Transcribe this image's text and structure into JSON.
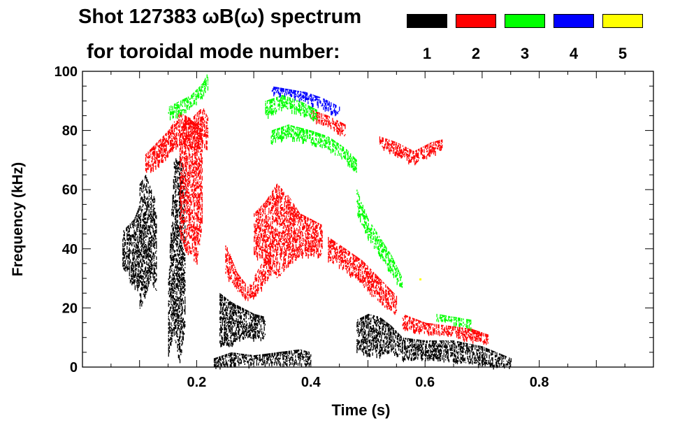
{
  "chart_data": {
    "type": "heatmap",
    "title": "Shot 127383 ωB(ω) spectrum",
    "subtitle": "for toroidal mode number:",
    "xlabel": "Time (s)",
    "ylabel": "Frequency (kHz)",
    "xlim": [
      0,
      1.0
    ],
    "ylim": [
      0,
      100
    ],
    "xticks": [
      "0.2",
      "0.4",
      "0.6",
      "0.8"
    ],
    "xtick_values": [
      0.2,
      0.4,
      0.6,
      0.8
    ],
    "yticks": [
      "0",
      "20",
      "40",
      "60",
      "80",
      "100"
    ],
    "ytick_values": [
      0,
      20,
      40,
      60,
      80,
      100
    ],
    "legend": [
      {
        "mode": "1",
        "color": "#000000"
      },
      {
        "mode": "2",
        "color": "#ff0000"
      },
      {
        "mode": "3",
        "color": "#00ff00"
      },
      {
        "mode": "4",
        "color": "#0000ff"
      },
      {
        "mode": "5",
        "color": "#ffff00"
      }
    ],
    "series": [
      {
        "mode": "1",
        "color": "#000000",
        "traces": [
          [
            [
              0.07,
              33,
              46
            ],
            [
              0.08,
              30,
              48
            ],
            [
              0.09,
              28,
              50
            ],
            [
              0.1,
              25,
              55
            ]
          ],
          [
            [
              0.1,
              20,
              62
            ],
            [
              0.11,
              25,
              65
            ],
            [
              0.12,
              30,
              60
            ],
            [
              0.13,
              25,
              55
            ]
          ],
          [
            [
              0.15,
              5,
              30
            ],
            [
              0.16,
              10,
              70
            ],
            [
              0.17,
              2,
              72
            ],
            [
              0.18,
              15,
              65
            ]
          ],
          [
            [
              0.23,
              0,
              3
            ],
            [
              0.26,
              1,
              5
            ],
            [
              0.3,
              1,
              4
            ],
            [
              0.34,
              1,
              5
            ],
            [
              0.38,
              1,
              6
            ],
            [
              0.4,
              1,
              5
            ]
          ],
          [
            [
              0.24,
              8,
              25
            ],
            [
              0.26,
              8,
              22
            ],
            [
              0.28,
              10,
              20
            ],
            [
              0.3,
              10,
              18
            ],
            [
              0.32,
              10,
              17
            ]
          ],
          [
            [
              0.48,
              6,
              16
            ],
            [
              0.5,
              4,
              18
            ],
            [
              0.52,
              4,
              17
            ],
            [
              0.54,
              5,
              14
            ],
            [
              0.56,
              4,
              10
            ]
          ],
          [
            [
              0.56,
              3,
              10
            ],
            [
              0.6,
              3,
              9
            ],
            [
              0.65,
              2,
              9
            ],
            [
              0.7,
              1,
              7
            ],
            [
              0.75,
              0,
              3
            ]
          ]
        ]
      },
      {
        "mode": "2",
        "color": "#ff0000",
        "traces": [
          [
            [
              0.11,
              66,
              72
            ],
            [
              0.13,
              68,
              76
            ],
            [
              0.15,
              72,
              80
            ],
            [
              0.17,
              76,
              86
            ],
            [
              0.19,
              74,
              84
            ],
            [
              0.21,
              76,
              88
            ],
            [
              0.22,
              74,
              84
            ]
          ],
          [
            [
              0.17,
              45,
              80
            ],
            [
              0.18,
              40,
              85
            ],
            [
              0.2,
              35,
              82
            ],
            [
              0.21,
              50,
              85
            ]
          ],
          [
            [
              0.25,
              32,
              42
            ],
            [
              0.27,
              26,
              32
            ],
            [
              0.29,
              23,
              27
            ],
            [
              0.31,
              26,
              34
            ],
            [
              0.33,
              32,
              40
            ]
          ],
          [
            [
              0.3,
              38,
              52
            ],
            [
              0.32,
              36,
              56
            ],
            [
              0.34,
              30,
              62
            ],
            [
              0.36,
              34,
              58
            ],
            [
              0.38,
              38,
              52
            ],
            [
              0.4,
              38,
              50
            ],
            [
              0.42,
              38,
              48
            ]
          ],
          [
            [
              0.43,
              36,
              44
            ],
            [
              0.46,
              33,
              40
            ],
            [
              0.49,
              28,
              36
            ],
            [
              0.52,
              22,
              30
            ],
            [
              0.55,
              18,
              24
            ]
          ],
          [
            [
              0.56,
              13,
              18
            ],
            [
              0.6,
              12,
              15
            ],
            [
              0.64,
              11,
              14
            ],
            [
              0.68,
              9,
              13
            ],
            [
              0.71,
              8,
              11
            ]
          ],
          [
            [
              0.4,
              84,
              87
            ],
            [
              0.43,
              82,
              85
            ],
            [
              0.46,
              78,
              82
            ]
          ],
          [
            [
              0.52,
              75,
              78
            ],
            [
              0.55,
              72,
              76
            ],
            [
              0.58,
              69,
              73
            ],
            [
              0.61,
              72,
              76
            ],
            [
              0.63,
              74,
              77
            ]
          ]
        ]
      },
      {
        "mode": "3",
        "color": "#00ff00",
        "traces": [
          [
            [
              0.15,
              84,
              88
            ],
            [
              0.17,
              86,
              90
            ],
            [
              0.19,
              88,
              92
            ],
            [
              0.21,
              92,
              96
            ],
            [
              0.22,
              95,
              100
            ]
          ],
          [
            [
              0.32,
              85,
              90
            ],
            [
              0.35,
              88,
              92
            ],
            [
              0.38,
              86,
              90
            ],
            [
              0.41,
              84,
              87
            ]
          ],
          [
            [
              0.33,
              76,
              80
            ],
            [
              0.36,
              78,
              82
            ],
            [
              0.4,
              76,
              80
            ],
            [
              0.43,
              74,
              78
            ],
            [
              0.46,
              70,
              74
            ],
            [
              0.48,
              66,
              70
            ]
          ],
          [
            [
              0.48,
              52,
              60
            ],
            [
              0.5,
              44,
              50
            ],
            [
              0.52,
              38,
              44
            ],
            [
              0.54,
              32,
              38
            ],
            [
              0.56,
              26,
              30
            ]
          ],
          [
            [
              0.62,
              16,
              18
            ],
            [
              0.65,
              15,
              17
            ],
            [
              0.68,
              13,
              16
            ]
          ]
        ]
      },
      {
        "mode": "4",
        "color": "#0000ff",
        "traces": [
          [
            [
              0.33,
              93,
              95
            ],
            [
              0.36,
              92,
              94
            ],
            [
              0.39,
              90,
              93
            ],
            [
              0.42,
              88,
              91
            ],
            [
              0.45,
              85,
              88
            ]
          ]
        ]
      },
      {
        "mode": "5",
        "color": "#ffff00",
        "traces": [
          [
            [
              0.59,
              29,
              30
            ]
          ]
        ]
      }
    ]
  }
}
